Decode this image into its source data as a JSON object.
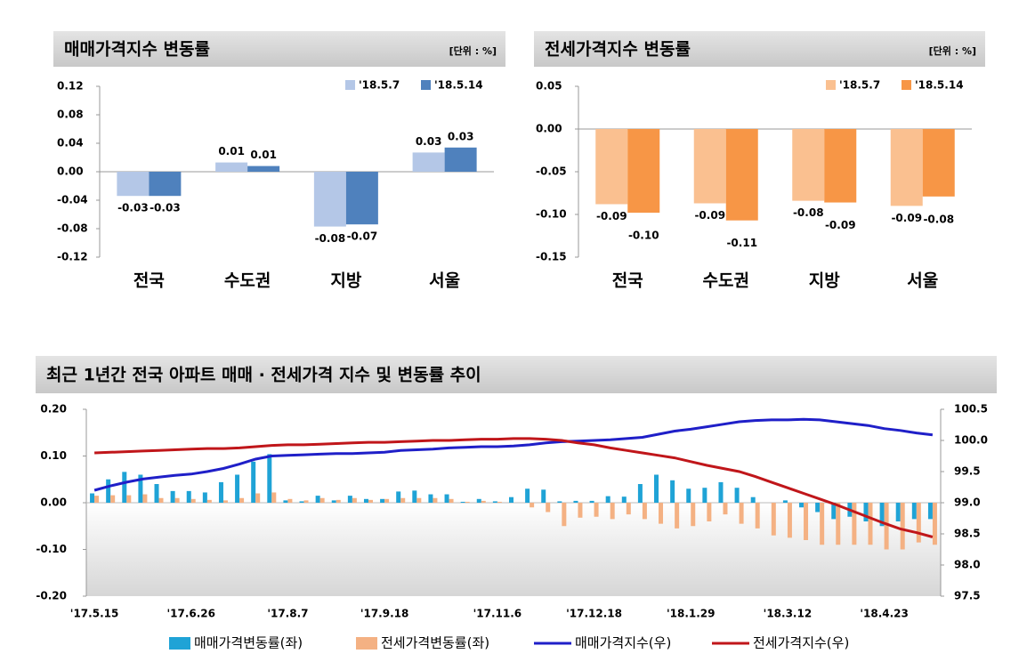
{
  "chart_data": [
    {
      "type": "bar",
      "title": "매매가격지수 변동률",
      "unit": "[단위 : %]",
      "categories": [
        "전국",
        "수도권",
        "지방",
        "서울"
      ],
      "series": [
        {
          "name": "'18.5.7",
          "color": "#b4c7e7",
          "values": [
            -0.034,
            0.013,
            -0.077,
            0.027
          ],
          "value_labels": [
            "-0.03",
            "0.01",
            "-0.08",
            "0.03"
          ]
        },
        {
          "name": "'18.5.14",
          "color": "#4f81bd",
          "values": [
            -0.034,
            0.008,
            -0.074,
            0.034
          ],
          "value_labels": [
            "-0.03",
            "0.01",
            "-0.07",
            "0.03"
          ]
        }
      ],
      "ylim": [
        -0.12,
        0.12
      ],
      "yticks": [
        -0.12,
        -0.08,
        -0.04,
        {
          "value": 0,
          "label": "0.00"
        },
        0.04,
        0.08,
        0.12
      ],
      "legend": "top-right"
    },
    {
      "type": "bar",
      "title": "전세가격지수 변동률",
      "unit": "[단위 : %]",
      "categories": [
        "전국",
        "수도권",
        "지방",
        "서울"
      ],
      "series": [
        {
          "name": "'18.5.7",
          "color": "#fac090",
          "values": [
            -0.088,
            -0.087,
            -0.084,
            -0.09
          ],
          "value_labels": [
            "-0.09",
            "-0.09",
            "-0.08",
            "-0.09"
          ]
        },
        {
          "name": "'18.5.14",
          "color": "#f79646",
          "values": [
            -0.098,
            -0.107,
            -0.086,
            -0.079
          ],
          "value_labels": [
            "-0.10",
            "-0.11",
            "-0.09",
            "-0.08"
          ]
        }
      ],
      "ylim": [
        -0.15,
        0.05
      ],
      "yticks": [
        -0.15,
        {
          "value": -0.1,
          "label": "-0.10"
        },
        -0.05,
        {
          "value": 0,
          "label": "0.00"
        },
        0.05
      ],
      "legend": "top-right"
    },
    {
      "type": "combo",
      "title": "최근 1년간 전국 아파트 매매 · 전세가격 지수 및 변동률 추이",
      "categories": [
        "'17.5.15",
        null,
        null,
        null,
        null,
        null,
        "'17.6.26",
        null,
        null,
        null,
        null,
        null,
        "'17.8.7",
        null,
        null,
        null,
        null,
        null,
        "'17.9.18",
        null,
        null,
        null,
        null,
        null,
        null,
        "'17.11.6",
        null,
        null,
        null,
        null,
        null,
        "'17.12.18",
        null,
        null,
        null,
        null,
        null,
        "'18.1.29",
        null,
        null,
        null,
        null,
        null,
        "'18.3.12",
        null,
        null,
        null,
        null,
        null,
        "'18.4.23",
        null,
        null,
        null
      ],
      "series": [
        {
          "name": "매매가격변동률(좌)",
          "type": "bar",
          "color": "#1fa3d6",
          "values": [
            0.02,
            0.05,
            0.066,
            0.06,
            0.04,
            0.025,
            0.025,
            0.022,
            0.044,
            0.06,
            0.088,
            0.104,
            0.005,
            0.003,
            0.015,
            0.005,
            0.015,
            0.008,
            0.008,
            0.024,
            0.026,
            0.018,
            0.018,
            0.002,
            0.008,
            0.003,
            0.012,
            0.03,
            0.028,
            0.003,
            0.004,
            0.004,
            0.014,
            0.013,
            0.04,
            0.06,
            0.048,
            0.03,
            0.032,
            0.044,
            0.032,
            0.012,
            0.0,
            0.005,
            -0.01,
            -0.02,
            -0.035,
            -0.03,
            -0.04,
            -0.05,
            -0.04,
            -0.035,
            -0.035
          ]
        },
        {
          "name": "전세가격변동률(좌)",
          "type": "bar",
          "color": "#f4b183",
          "values": [
            0.015,
            0.016,
            0.016,
            0.018,
            0.01,
            0.01,
            0.008,
            0.006,
            0.005,
            0.01,
            0.02,
            0.022,
            0.008,
            0.005,
            0.01,
            0.006,
            0.01,
            0.006,
            0.008,
            0.01,
            0.01,
            0.01,
            0.008,
            0.002,
            0.004,
            0.002,
            0.0,
            -0.01,
            -0.02,
            -0.05,
            -0.032,
            -0.03,
            -0.035,
            -0.025,
            -0.035,
            -0.045,
            -0.055,
            -0.05,
            -0.04,
            -0.025,
            -0.045,
            -0.055,
            -0.07,
            -0.075,
            -0.08,
            -0.09,
            -0.09,
            -0.09,
            -0.09,
            -0.1,
            -0.1,
            -0.085,
            -0.09
          ]
        },
        {
          "name": "매매가격지수(우)",
          "type": "line",
          "axis": "y2",
          "color": "#1f1fc8",
          "values": [
            99.2,
            99.27,
            99.33,
            99.38,
            99.41,
            99.44,
            99.46,
            99.5,
            99.55,
            99.62,
            99.7,
            99.75,
            99.76,
            99.77,
            99.78,
            99.79,
            99.79,
            99.8,
            99.81,
            99.84,
            99.85,
            99.86,
            99.88,
            99.89,
            99.9,
            99.9,
            99.91,
            99.93,
            99.96,
            99.98,
            99.99,
            100.0,
            100.01,
            100.03,
            100.05,
            100.1,
            100.15,
            100.18,
            100.22,
            100.26,
            100.3,
            100.32,
            100.33,
            100.33,
            100.34,
            100.33,
            100.3,
            100.27,
            100.24,
            100.19,
            100.16,
            100.12,
            100.09
          ]
        },
        {
          "name": "전세가격지수(우)",
          "type": "line",
          "axis": "y2",
          "color": "#c0161a",
          "values": [
            99.8,
            99.81,
            99.82,
            99.83,
            99.84,
            99.85,
            99.86,
            99.87,
            99.87,
            99.88,
            99.9,
            99.92,
            99.93,
            99.93,
            99.94,
            99.95,
            99.96,
            99.97,
            99.97,
            99.98,
            99.99,
            100.0,
            100.0,
            100.01,
            100.02,
            100.02,
            100.03,
            100.03,
            100.02,
            100.0,
            99.96,
            99.93,
            99.88,
            99.84,
            99.8,
            99.76,
            99.72,
            99.66,
            99.6,
            99.55,
            99.5,
            99.42,
            99.33,
            99.24,
            99.15,
            99.06,
            98.97,
            98.87,
            98.77,
            98.67,
            98.58,
            98.52,
            98.45
          ]
        }
      ],
      "ylim": [
        -0.2,
        0.2
      ],
      "yticks": [
        {
          "value": -0.2,
          "label": "-0.20"
        },
        {
          "value": -0.1,
          "label": "-0.10"
        },
        {
          "value": 0,
          "label": "0.00"
        },
        {
          "value": 0.1,
          "label": "0.10"
        },
        {
          "value": 0.2,
          "label": "0.20"
        }
      ],
      "y2lim": [
        97.5,
        100.5
      ],
      "y2ticks": [
        97.5,
        {
          "value": 98,
          "label": "98.0"
        },
        98.5,
        {
          "value": 99,
          "label": "99.0"
        },
        99.5,
        {
          "value": 100,
          "label": "100.0"
        },
        100.5
      ],
      "legend": "bottom"
    }
  ]
}
